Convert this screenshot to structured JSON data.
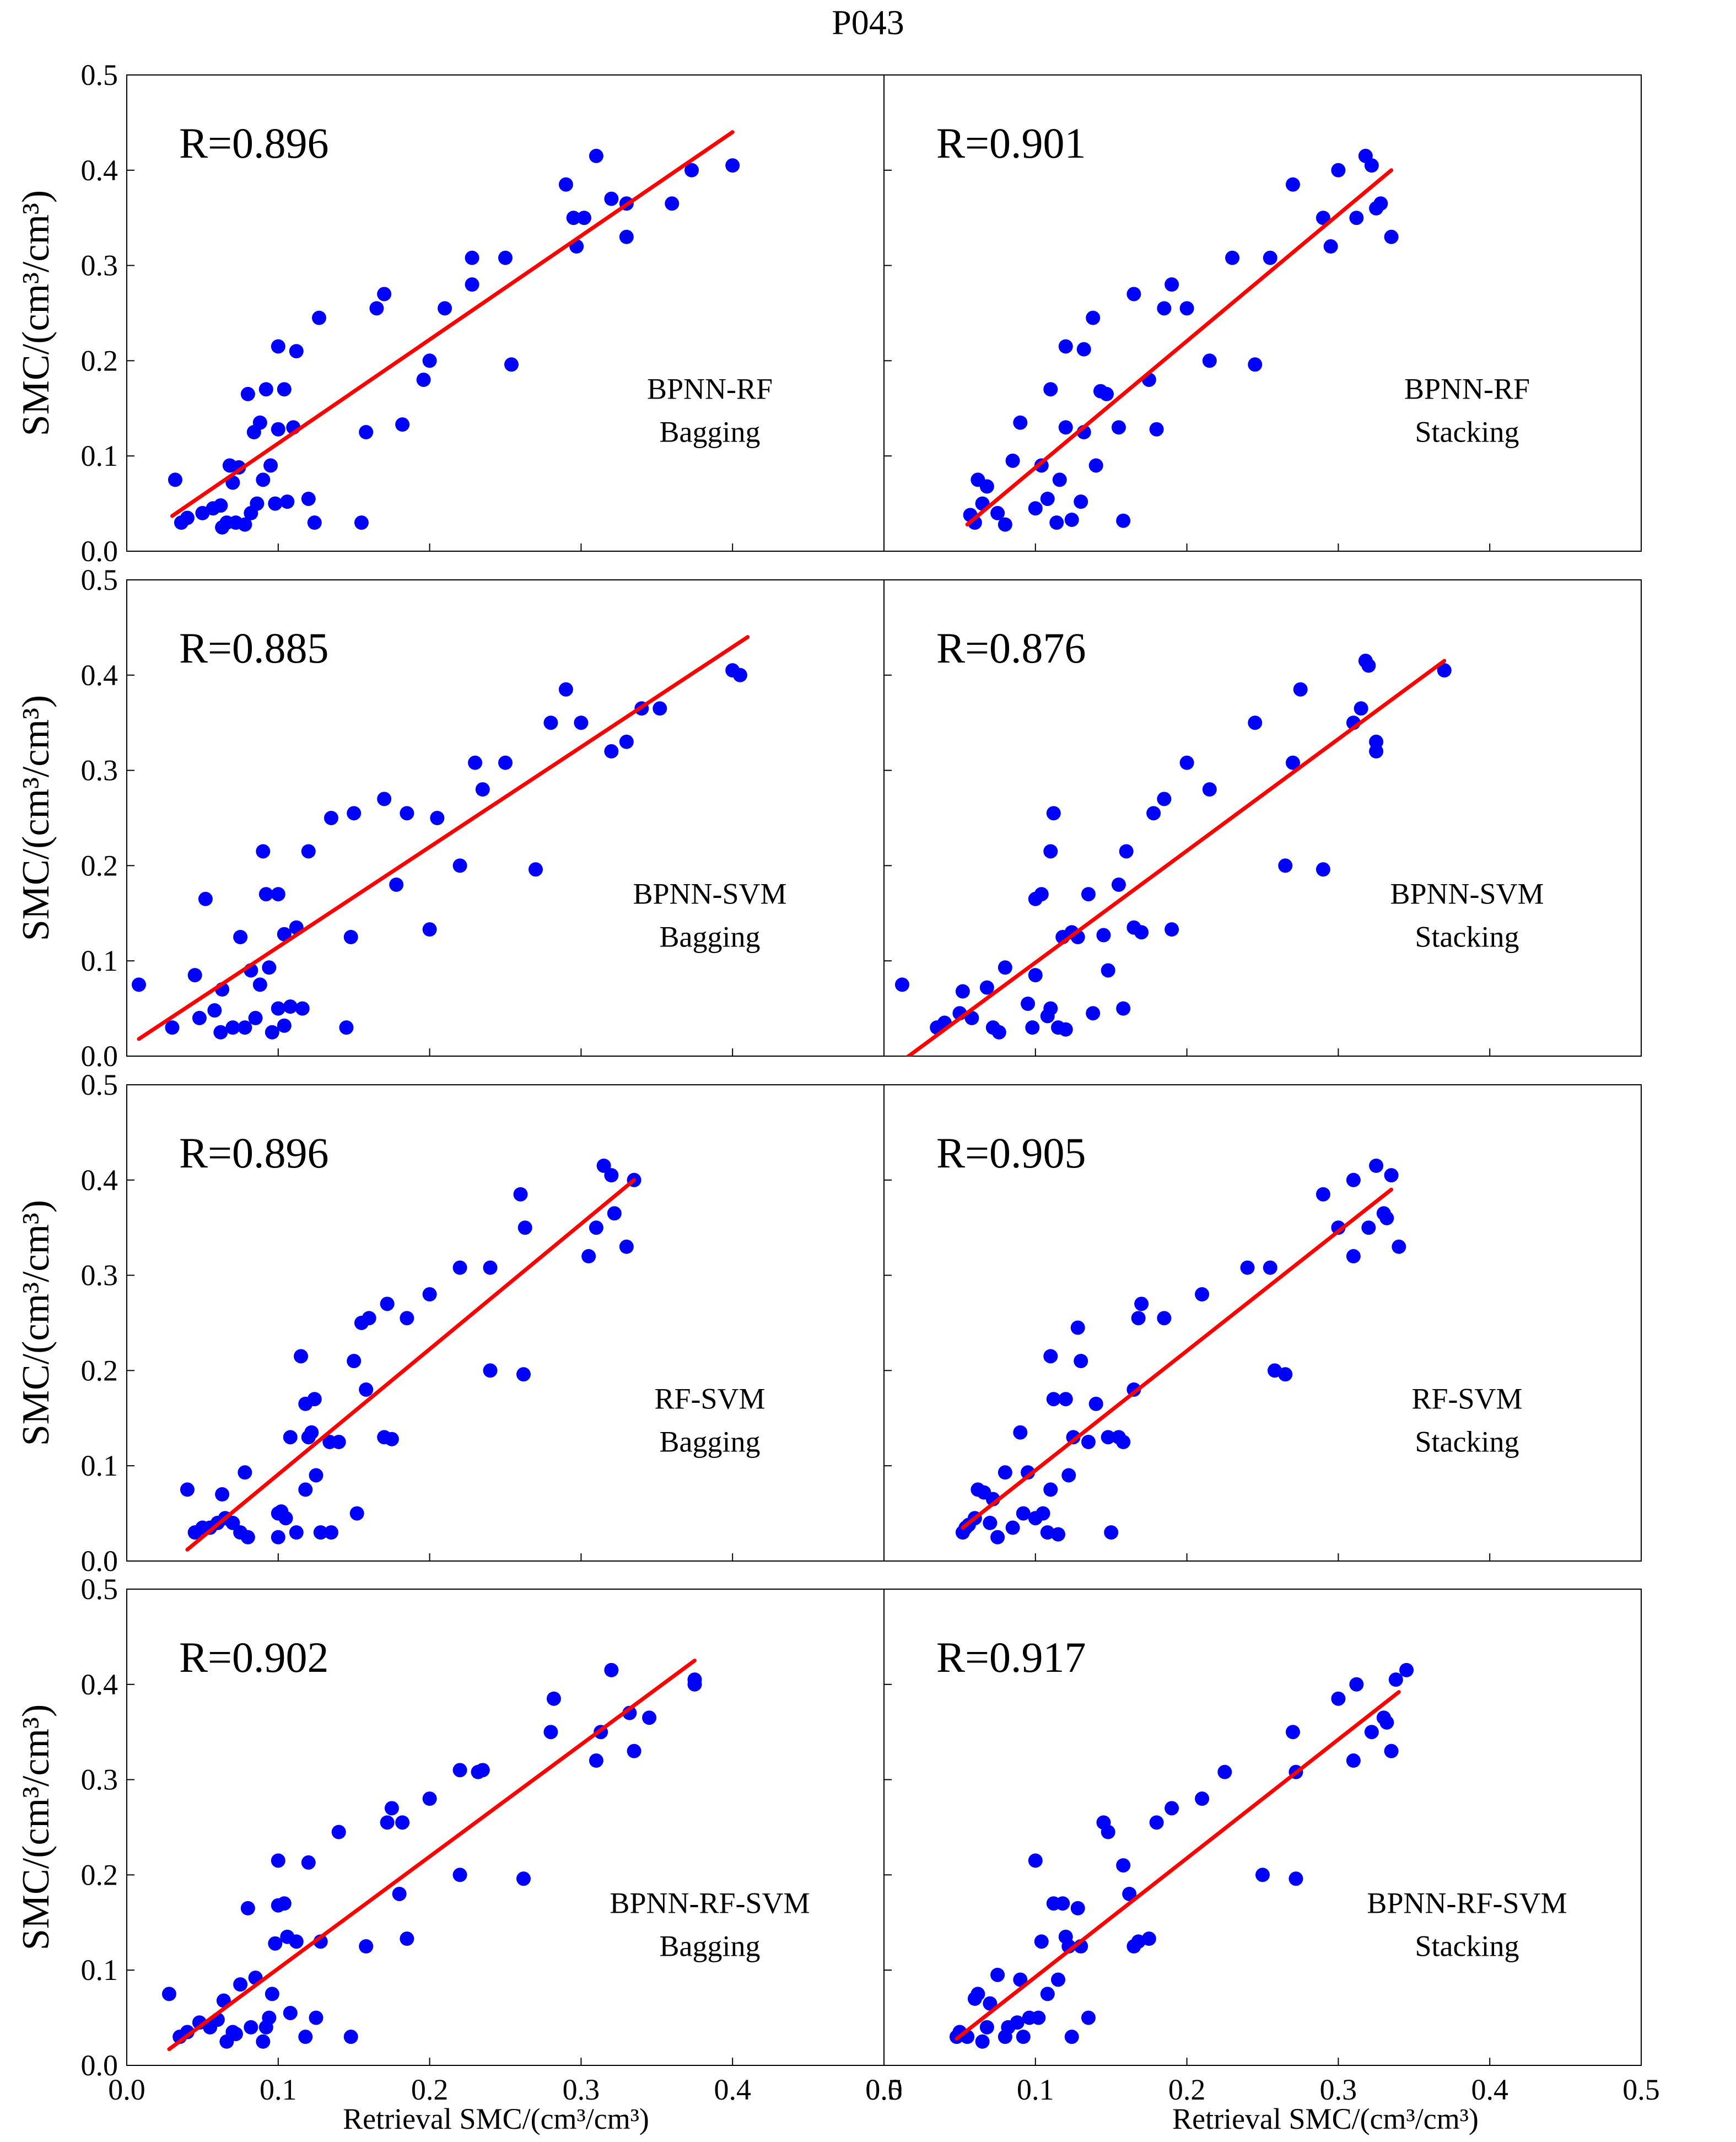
{
  "figure": {
    "title": "P043",
    "y_axis_label": "SMC/(cm³/cm³)",
    "x_axis_label": "Retrieval SMC/(cm³/cm³)",
    "point_color": "#0000ff",
    "fit_color": "#ff0000"
  },
  "chart_data": [
    {
      "type": "scatter",
      "panel": "row1-left",
      "r_label": "R=0.896",
      "method_line1": "BPNN-RF",
      "method_line2": "Bagging",
      "xlim": [
        0,
        0.5
      ],
      "ylim": [
        0,
        0.5
      ],
      "ticks": [
        0.0,
        0.1,
        0.2,
        0.3,
        0.4,
        0.5
      ],
      "tick_labels": [
        "0.0",
        "0.1",
        "0.2",
        "0.3",
        "0.4",
        "0.5"
      ],
      "x": [
        0.032,
        0.036,
        0.04,
        0.05,
        0.057,
        0.062,
        0.063,
        0.066,
        0.068,
        0.07,
        0.072,
        0.074,
        0.078,
        0.08,
        0.082,
        0.084,
        0.086,
        0.088,
        0.09,
        0.092,
        0.095,
        0.098,
        0.1,
        0.1,
        0.104,
        0.106,
        0.11,
        0.112,
        0.12,
        0.124,
        0.127,
        0.155,
        0.158,
        0.165,
        0.17,
        0.182,
        0.196,
        0.2,
        0.21,
        0.228,
        0.228,
        0.25,
        0.254,
        0.29,
        0.295,
        0.297,
        0.302,
        0.31,
        0.32,
        0.33,
        0.33,
        0.36,
        0.373,
        0.4
      ],
      "y": [
        0.075,
        0.03,
        0.035,
        0.04,
        0.045,
        0.048,
        0.025,
        0.03,
        0.09,
        0.072,
        0.03,
        0.088,
        0.028,
        0.165,
        0.04,
        0.125,
        0.05,
        0.135,
        0.075,
        0.17,
        0.09,
        0.05,
        0.215,
        0.128,
        0.17,
        0.052,
        0.13,
        0.21,
        0.055,
        0.03,
        0.245,
        0.03,
        0.125,
        0.255,
        0.27,
        0.133,
        0.18,
        0.2,
        0.255,
        0.28,
        0.308,
        0.308,
        0.196,
        0.385,
        0.35,
        0.32,
        0.35,
        0.415,
        0.37,
        0.33,
        0.365,
        0.365,
        0.4,
        0.405
      ],
      "fit": {
        "x1": 0.03,
        "y1": 0.037,
        "x2": 0.4,
        "y2": 0.44
      }
    },
    {
      "type": "scatter",
      "panel": "row1-right",
      "r_label": "R=0.901",
      "method_line1": "BPNN-RF",
      "method_line2": "Stacking",
      "xlim": [
        0,
        0.5
      ],
      "ylim": [
        0,
        0.5
      ],
      "ticks": [
        0.0,
        0.1,
        0.2,
        0.3,
        0.4,
        0.5
      ],
      "tick_labels": [
        "0.0",
        "0.1",
        "0.2",
        "0.3",
        "0.4",
        "0.5"
      ],
      "x": [
        0.057,
        0.06,
        0.062,
        0.065,
        0.068,
        0.075,
        0.08,
        0.085,
        0.09,
        0.1,
        0.104,
        0.108,
        0.11,
        0.114,
        0.116,
        0.12,
        0.12,
        0.124,
        0.13,
        0.132,
        0.132,
        0.138,
        0.14,
        0.143,
        0.147,
        0.155,
        0.158,
        0.165,
        0.175,
        0.18,
        0.185,
        0.19,
        0.2,
        0.215,
        0.23,
        0.245,
        0.255,
        0.27,
        0.29,
        0.295,
        0.3,
        0.312,
        0.318,
        0.322,
        0.325,
        0.328,
        0.335
      ],
      "y": [
        0.038,
        0.03,
        0.075,
        0.05,
        0.068,
        0.04,
        0.028,
        0.095,
        0.135,
        0.045,
        0.09,
        0.055,
        0.17,
        0.03,
        0.075,
        0.215,
        0.13,
        0.033,
        0.052,
        0.125,
        0.212,
        0.245,
        0.09,
        0.168,
        0.165,
        0.13,
        0.032,
        0.27,
        0.18,
        0.128,
        0.255,
        0.28,
        0.255,
        0.2,
        0.308,
        0.196,
        0.308,
        0.385,
        0.35,
        0.32,
        0.4,
        0.35,
        0.415,
        0.405,
        0.36,
        0.365,
        0.33
      ],
      "fit": {
        "x1": 0.055,
        "y1": 0.028,
        "x2": 0.335,
        "y2": 0.4
      }
    },
    {
      "type": "scatter",
      "panel": "row2-left",
      "r_label": "R=0.885",
      "method_line1": "BPNN-SVM",
      "method_line2": "Bagging",
      "xlim": [
        0,
        0.5
      ],
      "ylim": [
        0,
        0.5
      ],
      "ticks": [
        0.0,
        0.1,
        0.2,
        0.3,
        0.4,
        0.5
      ],
      "tick_labels": [
        "0.0",
        "0.1",
        "0.2",
        "0.3",
        "0.4",
        "0.5"
      ],
      "x": [
        0.008,
        0.03,
        0.045,
        0.048,
        0.052,
        0.058,
        0.062,
        0.063,
        0.07,
        0.075,
        0.078,
        0.082,
        0.085,
        0.088,
        0.09,
        0.092,
        0.094,
        0.096,
        0.1,
        0.1,
        0.104,
        0.104,
        0.108,
        0.112,
        0.116,
        0.12,
        0.135,
        0.145,
        0.148,
        0.15,
        0.17,
        0.178,
        0.185,
        0.2,
        0.205,
        0.22,
        0.23,
        0.235,
        0.25,
        0.27,
        0.28,
        0.29,
        0.3,
        0.33,
        0.32,
        0.34,
        0.352,
        0.4,
        0.405
      ],
      "y": [
        0.075,
        0.03,
        0.085,
        0.04,
        0.165,
        0.048,
        0.025,
        0.07,
        0.03,
        0.125,
        0.03,
        0.09,
        0.04,
        0.075,
        0.215,
        0.17,
        0.093,
        0.025,
        0.05,
        0.17,
        0.032,
        0.128,
        0.052,
        0.135,
        0.05,
        0.215,
        0.25,
        0.03,
        0.125,
        0.255,
        0.27,
        0.18,
        0.255,
        0.133,
        0.25,
        0.2,
        0.308,
        0.28,
        0.308,
        0.196,
        0.35,
        0.385,
        0.35,
        0.33,
        0.32,
        0.365,
        0.365,
        0.405,
        0.4
      ],
      "fit": {
        "x1": 0.008,
        "y1": 0.018,
        "x2": 0.41,
        "y2": 0.44
      }
    },
    {
      "type": "scatter",
      "panel": "row2-right",
      "r_label": "R=0.876",
      "method_line1": "BPNN-SVM",
      "method_line2": "Stacking",
      "xlim": [
        0,
        0.5
      ],
      "ylim": [
        0,
        0.5
      ],
      "ticks": [
        0.0,
        0.1,
        0.2,
        0.3,
        0.4,
        0.5
      ],
      "tick_labels": [
        "0.0",
        "0.1",
        "0.2",
        "0.3",
        "0.4",
        "0.5"
      ],
      "x": [
        0.012,
        0.035,
        0.04,
        0.05,
        0.052,
        0.058,
        0.068,
        0.072,
        0.076,
        0.08,
        0.095,
        0.098,
        0.1,
        0.1,
        0.104,
        0.108,
        0.11,
        0.11,
        0.112,
        0.115,
        0.118,
        0.12,
        0.124,
        0.128,
        0.135,
        0.138,
        0.145,
        0.148,
        0.155,
        0.158,
        0.16,
        0.165,
        0.17,
        0.178,
        0.185,
        0.19,
        0.2,
        0.215,
        0.245,
        0.265,
        0.27,
        0.275,
        0.29,
        0.31,
        0.315,
        0.318,
        0.32,
        0.325,
        0.325,
        0.37
      ],
      "y": [
        0.075,
        0.03,
        0.035,
        0.045,
        0.068,
        0.04,
        0.072,
        0.03,
        0.025,
        0.093,
        0.055,
        0.03,
        0.085,
        0.165,
        0.17,
        0.042,
        0.05,
        0.215,
        0.255,
        0.03,
        0.125,
        0.028,
        0.13,
        0.125,
        0.17,
        0.045,
        0.127,
        0.09,
        0.18,
        0.05,
        0.215,
        0.135,
        0.13,
        0.255,
        0.27,
        0.133,
        0.308,
        0.28,
        0.35,
        0.2,
        0.308,
        0.385,
        0.196,
        0.35,
        0.365,
        0.415,
        0.41,
        0.33,
        0.32,
        0.405
      ],
      "fit": {
        "x1": 0.012,
        "y1": -0.005,
        "x2": 0.37,
        "y2": 0.415
      }
    },
    {
      "type": "scatter",
      "panel": "row3-left",
      "r_label": "R=0.896",
      "method_line1": "RF-SVM",
      "method_line2": "Bagging",
      "xlim": [
        0,
        0.5
      ],
      "ylim": [
        0,
        0.5
      ],
      "ticks": [
        0.0,
        0.1,
        0.2,
        0.3,
        0.4,
        0.5
      ],
      "tick_labels": [
        "0.0",
        "0.1",
        "0.2",
        "0.3",
        "0.4",
        "0.5"
      ],
      "x": [
        0.04,
        0.045,
        0.05,
        0.055,
        0.06,
        0.063,
        0.065,
        0.07,
        0.075,
        0.078,
        0.08,
        0.1,
        0.1,
        0.102,
        0.105,
        0.108,
        0.112,
        0.115,
        0.118,
        0.118,
        0.12,
        0.122,
        0.124,
        0.125,
        0.128,
        0.134,
        0.135,
        0.14,
        0.15,
        0.152,
        0.155,
        0.158,
        0.16,
        0.17,
        0.172,
        0.175,
        0.185,
        0.2,
        0.22,
        0.24,
        0.24,
        0.26,
        0.262,
        0.263,
        0.305,
        0.31,
        0.315,
        0.32,
        0.322,
        0.33,
        0.335
      ],
      "y": [
        0.075,
        0.03,
        0.035,
        0.035,
        0.04,
        0.07,
        0.045,
        0.04,
        0.03,
        0.093,
        0.025,
        0.025,
        0.05,
        0.052,
        0.045,
        0.13,
        0.03,
        0.215,
        0.165,
        0.075,
        0.13,
        0.135,
        0.17,
        0.09,
        0.03,
        0.125,
        0.03,
        0.125,
        0.21,
        0.05,
        0.25,
        0.18,
        0.255,
        0.13,
        0.27,
        0.128,
        0.255,
        0.28,
        0.308,
        0.308,
        0.2,
        0.385,
        0.196,
        0.35,
        0.32,
        0.35,
        0.415,
        0.405,
        0.365,
        0.33,
        0.4
      ],
      "fit": {
        "x1": 0.04,
        "y1": 0.012,
        "x2": 0.335,
        "y2": 0.4
      }
    },
    {
      "type": "scatter",
      "panel": "row3-right",
      "r_label": "R=0.905",
      "method_line1": "RF-SVM",
      "method_line2": "Stacking",
      "xlim": [
        0,
        0.5
      ],
      "ylim": [
        0,
        0.5
      ],
      "ticks": [
        0.0,
        0.1,
        0.2,
        0.3,
        0.4,
        0.5
      ],
      "tick_labels": [
        "0.0",
        "0.1",
        "0.2",
        "0.3",
        "0.4",
        "0.5"
      ],
      "x": [
        0.052,
        0.054,
        0.056,
        0.06,
        0.062,
        0.066,
        0.07,
        0.072,
        0.075,
        0.08,
        0.085,
        0.09,
        0.092,
        0.095,
        0.1,
        0.105,
        0.108,
        0.11,
        0.11,
        0.112,
        0.115,
        0.12,
        0.122,
        0.125,
        0.128,
        0.13,
        0.135,
        0.14,
        0.148,
        0.15,
        0.155,
        0.158,
        0.165,
        0.168,
        0.17,
        0.185,
        0.21,
        0.24,
        0.255,
        0.258,
        0.265,
        0.29,
        0.3,
        0.31,
        0.31,
        0.32,
        0.325,
        0.33,
        0.332,
        0.335,
        0.34
      ],
      "y": [
        0.03,
        0.035,
        0.038,
        0.045,
        0.075,
        0.072,
        0.04,
        0.065,
        0.025,
        0.093,
        0.035,
        0.135,
        0.05,
        0.093,
        0.045,
        0.05,
        0.03,
        0.075,
        0.215,
        0.17,
        0.028,
        0.17,
        0.09,
        0.13,
        0.245,
        0.21,
        0.125,
        0.165,
        0.13,
        0.03,
        0.13,
        0.125,
        0.18,
        0.255,
        0.27,
        0.255,
        0.28,
        0.308,
        0.308,
        0.2,
        0.196,
        0.385,
        0.35,
        0.32,
        0.4,
        0.35,
        0.415,
        0.365,
        0.36,
        0.405,
        0.33
      ],
      "fit": {
        "x1": 0.052,
        "y1": 0.035,
        "x2": 0.335,
        "y2": 0.39
      }
    },
    {
      "type": "scatter",
      "panel": "row4-left",
      "r_label": "R=0.902",
      "method_line1": "BPNN-RF-SVM",
      "method_line2": "Bagging",
      "xlim": [
        0,
        0.5
      ],
      "ylim": [
        0,
        0.5
      ],
      "ticks": [
        0.0,
        0.1,
        0.2,
        0.3,
        0.4,
        0.5
      ],
      "tick_labels": [
        "0.0",
        "0.1",
        "0.2",
        "0.3",
        "0.4",
        "0.5"
      ],
      "x": [
        0.028,
        0.035,
        0.04,
        0.048,
        0.055,
        0.06,
        0.064,
        0.066,
        0.07,
        0.072,
        0.075,
        0.08,
        0.082,
        0.085,
        0.09,
        0.092,
        0.094,
        0.096,
        0.098,
        0.1,
        0.1,
        0.104,
        0.106,
        0.108,
        0.112,
        0.118,
        0.12,
        0.125,
        0.128,
        0.14,
        0.148,
        0.158,
        0.172,
        0.175,
        0.18,
        0.182,
        0.185,
        0.2,
        0.22,
        0.22,
        0.232,
        0.235,
        0.262,
        0.28,
        0.282,
        0.31,
        0.313,
        0.32,
        0.332,
        0.335,
        0.345,
        0.375,
        0.375
      ],
      "y": [
        0.075,
        0.03,
        0.035,
        0.045,
        0.04,
        0.048,
        0.068,
        0.025,
        0.035,
        0.033,
        0.085,
        0.165,
        0.04,
        0.092,
        0.025,
        0.04,
        0.05,
        0.075,
        0.128,
        0.215,
        0.168,
        0.17,
        0.135,
        0.055,
        0.13,
        0.03,
        0.213,
        0.05,
        0.13,
        0.245,
        0.03,
        0.125,
        0.255,
        0.27,
        0.18,
        0.255,
        0.133,
        0.28,
        0.2,
        0.31,
        0.308,
        0.31,
        0.196,
        0.35,
        0.385,
        0.32,
        0.35,
        0.415,
        0.37,
        0.33,
        0.365,
        0.4,
        0.405
      ],
      "fit": {
        "x1": 0.028,
        "y1": 0.017,
        "x2": 0.375,
        "y2": 0.425
      }
    },
    {
      "type": "scatter",
      "panel": "row4-right",
      "r_label": "R=0.917",
      "method_line1": "BPNN-RF-SVM",
      "method_line2": "Stacking",
      "xlim": [
        0,
        0.5
      ],
      "ylim": [
        0,
        0.5
      ],
      "ticks": [
        0.0,
        0.1,
        0.2,
        0.3,
        0.4,
        0.5
      ],
      "tick_labels": [
        "0.0",
        "0.1",
        "0.2",
        "0.3",
        "0.4",
        "0.5"
      ],
      "x": [
        0.048,
        0.05,
        0.055,
        0.06,
        0.062,
        0.065,
        0.068,
        0.07,
        0.075,
        0.08,
        0.082,
        0.088,
        0.09,
        0.092,
        0.096,
        0.1,
        0.102,
        0.104,
        0.108,
        0.112,
        0.115,
        0.118,
        0.12,
        0.122,
        0.124,
        0.128,
        0.13,
        0.135,
        0.145,
        0.148,
        0.158,
        0.162,
        0.165,
        0.168,
        0.175,
        0.18,
        0.19,
        0.21,
        0.225,
        0.25,
        0.27,
        0.272,
        0.272,
        0.3,
        0.31,
        0.312,
        0.322,
        0.33,
        0.332,
        0.335,
        0.338,
        0.345
      ],
      "y": [
        0.03,
        0.035,
        0.03,
        0.07,
        0.075,
        0.025,
        0.04,
        0.065,
        0.095,
        0.03,
        0.04,
        0.045,
        0.09,
        0.03,
        0.05,
        0.215,
        0.05,
        0.13,
        0.075,
        0.17,
        0.09,
        0.17,
        0.135,
        0.125,
        0.03,
        0.165,
        0.125,
        0.05,
        0.255,
        0.245,
        0.21,
        0.18,
        0.125,
        0.13,
        0.133,
        0.255,
        0.27,
        0.28,
        0.308,
        0.2,
        0.35,
        0.308,
        0.196,
        0.385,
        0.32,
        0.4,
        0.35,
        0.365,
        0.36,
        0.33,
        0.405,
        0.415
      ],
      "fit": {
        "x1": 0.048,
        "y1": 0.028,
        "x2": 0.34,
        "y2": 0.392
      }
    }
  ]
}
